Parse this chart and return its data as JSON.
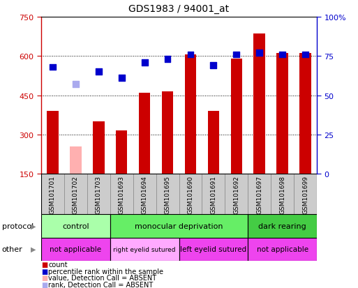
{
  "title": "GDS1983 / 94001_at",
  "samples": [
    "GSM101701",
    "GSM101702",
    "GSM101703",
    "GSM101693",
    "GSM101694",
    "GSM101695",
    "GSM101690",
    "GSM101691",
    "GSM101692",
    "GSM101697",
    "GSM101698",
    "GSM101699"
  ],
  "counts": [
    390,
    255,
    350,
    315,
    460,
    465,
    605,
    390,
    590,
    685,
    610,
    610
  ],
  "absent_count_idx": [
    1
  ],
  "percentile": [
    68,
    57,
    65,
    61,
    71,
    73,
    76,
    69,
    76,
    77,
    76,
    76
  ],
  "absent_percentile_idx": [
    1
  ],
  "ylim_left": [
    150,
    750
  ],
  "ylim_right": [
    0,
    100
  ],
  "yticks_left": [
    150,
    300,
    450,
    600,
    750
  ],
  "yticks_right": [
    0,
    25,
    50,
    75,
    100
  ],
  "bar_color": "#cc0000",
  "absent_bar_color": "#ffb0b0",
  "dot_color": "#0000cc",
  "absent_dot_color": "#aaaaee",
  "protocol_groups": [
    {
      "label": "control",
      "start": 0,
      "end": 3,
      "color": "#aaffaa"
    },
    {
      "label": "monocular deprivation",
      "start": 3,
      "end": 9,
      "color": "#66ee66"
    },
    {
      "label": "dark rearing",
      "start": 9,
      "end": 12,
      "color": "#44cc44"
    }
  ],
  "other_groups": [
    {
      "label": "not applicable",
      "start": 0,
      "end": 3,
      "color": "#ee44ee"
    },
    {
      "label": "right eyelid sutured",
      "start": 3,
      "end": 6,
      "color": "#ffaaff"
    },
    {
      "label": "left eyelid sutured",
      "start": 6,
      "end": 9,
      "color": "#ee44ee"
    },
    {
      "label": "not applicable",
      "start": 9,
      "end": 12,
      "color": "#ee44ee"
    }
  ],
  "legend_items": [
    {
      "label": "count",
      "color": "#cc0000"
    },
    {
      "label": "percentile rank within the sample",
      "color": "#0000cc"
    },
    {
      "label": "value, Detection Call = ABSENT",
      "color": "#ffb0b0"
    },
    {
      "label": "rank, Detection Call = ABSENT",
      "color": "#aaaaee"
    }
  ],
  "bar_width": 0.5,
  "dot_size": 40,
  "tick_color_left": "#cc0000",
  "tick_color_right": "#0000cc",
  "xlab_bg": "#cccccc",
  "xlab_border": "#888888"
}
